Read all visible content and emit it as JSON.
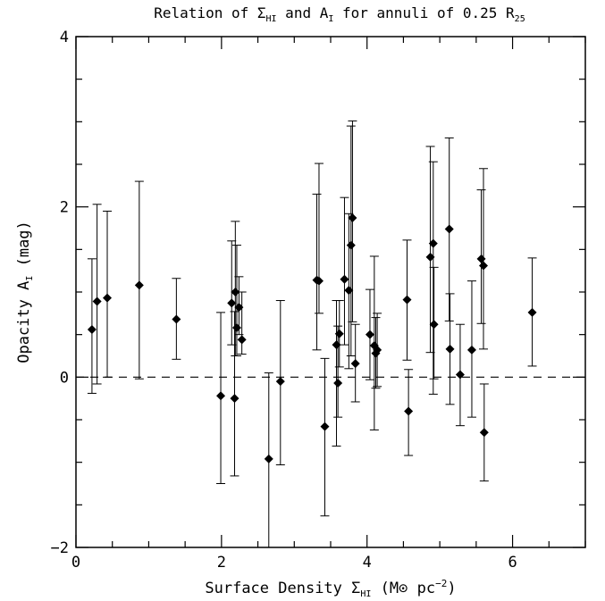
{
  "chart_data": {
    "type": "scatter",
    "title": "Relation of ΣHI and AI for annuli of 0.25 R25",
    "title_parts": {
      "pre": "Relation of Σ",
      "sub1": "HI",
      "mid": " and A",
      "sub2": "I",
      "post": " for annuli of 0.25 R",
      "sub3": "25"
    },
    "xlabel": "Surface Density ΣHI (M⊙ pc⁻²)",
    "xlabel_parts": {
      "pre": "Surface Density Σ",
      "sub": "HI",
      "mid": " (M",
      "sym": "⊙",
      "unit": " pc",
      "sup": "−2",
      "post": ")"
    },
    "ylabel": "Opacity AI (mag)",
    "ylabel_parts": {
      "pre": "Opacity A",
      "sub": "I",
      "post": " (mag)"
    },
    "xlim": [
      0,
      7
    ],
    "ylim": [
      -2,
      4
    ],
    "xticks": [
      0,
      2,
      4,
      6
    ],
    "xtick_labels": [
      "0",
      "2",
      "4",
      "6"
    ],
    "yticks": [
      -2,
      0,
      2,
      4
    ],
    "ytick_labels": [
      "−2",
      "0",
      "2",
      "4"
    ],
    "reference_line": {
      "y": 0,
      "style": "dashed"
    },
    "marker": "diamond",
    "color": "#000000",
    "points": [
      {
        "x": 0.22,
        "y": 0.56,
        "ylo": -0.19,
        "yhi": 1.39
      },
      {
        "x": 0.29,
        "y": 0.89,
        "ylo": -0.08,
        "yhi": 2.03
      },
      {
        "x": 0.43,
        "y": 0.93,
        "ylo": 0.0,
        "yhi": 1.95
      },
      {
        "x": 0.87,
        "y": 1.08,
        "ylo": -0.02,
        "yhi": 2.3
      },
      {
        "x": 1.38,
        "y": 0.68,
        "ylo": 0.21,
        "yhi": 1.16
      },
      {
        "x": 1.99,
        "y": -0.22,
        "ylo": -1.25,
        "yhi": 0.76
      },
      {
        "x": 2.14,
        "y": 0.87,
        "ylo": 0.38,
        "yhi": 1.6
      },
      {
        "x": 2.18,
        "y": -0.25,
        "ylo": -1.16,
        "yhi": 0.77
      },
      {
        "x": 2.19,
        "y": 1.0,
        "ylo": 0.25,
        "yhi": 1.83
      },
      {
        "x": 2.21,
        "y": 0.58,
        "ylo": 0.25,
        "yhi": 1.55
      },
      {
        "x": 2.24,
        "y": 0.82,
        "ylo": 0.5,
        "yhi": 1.18
      },
      {
        "x": 2.28,
        "y": 0.44,
        "ylo": 0.27,
        "yhi": 1.0
      },
      {
        "x": 2.65,
        "y": -0.96,
        "ylo": -2.0,
        "yhi": 0.05
      },
      {
        "x": 2.81,
        "y": -0.05,
        "ylo": -1.03,
        "yhi": 0.9
      },
      {
        "x": 3.31,
        "y": 1.14,
        "ylo": 0.32,
        "yhi": 2.15
      },
      {
        "x": 3.34,
        "y": 1.13,
        "ylo": 0.75,
        "yhi": 2.51
      },
      {
        "x": 3.42,
        "y": -0.58,
        "ylo": -1.63,
        "yhi": 0.22
      },
      {
        "x": 3.58,
        "y": 0.38,
        "ylo": -0.81,
        "yhi": 0.9
      },
      {
        "x": 3.6,
        "y": -0.07,
        "ylo": -0.47,
        "yhi": 0.6
      },
      {
        "x": 3.62,
        "y": 0.51,
        "ylo": 0.12,
        "yhi": 0.9
      },
      {
        "x": 3.69,
        "y": 1.15,
        "ylo": 0.38,
        "yhi": 2.11
      },
      {
        "x": 3.75,
        "y": 1.02,
        "ylo": 0.1,
        "yhi": 1.92
      },
      {
        "x": 3.78,
        "y": 1.55,
        "ylo": 0.25,
        "yhi": 2.95
      },
      {
        "x": 3.8,
        "y": 1.87,
        "ylo": 0.65,
        "yhi": 3.01
      },
      {
        "x": 3.84,
        "y": 0.16,
        "ylo": -0.29,
        "yhi": 0.62
      },
      {
        "x": 4.04,
        "y": 0.5,
        "ylo": -0.03,
        "yhi": 1.03
      },
      {
        "x": 4.1,
        "y": 0.37,
        "ylo": -0.62,
        "yhi": 1.42
      },
      {
        "x": 4.12,
        "y": 0.28,
        "ylo": -0.13,
        "yhi": 0.7
      },
      {
        "x": 4.14,
        "y": 0.32,
        "ylo": -0.11,
        "yhi": 0.75
      },
      {
        "x": 4.55,
        "y": 0.91,
        "ylo": 0.2,
        "yhi": 1.61
      },
      {
        "x": 4.57,
        "y": -0.4,
        "ylo": -0.92,
        "yhi": 0.09
      },
      {
        "x": 4.87,
        "y": 1.41,
        "ylo": 0.29,
        "yhi": 2.71
      },
      {
        "x": 4.91,
        "y": 1.57,
        "ylo": -0.2,
        "yhi": 2.53
      },
      {
        "x": 4.92,
        "y": 0.62,
        "ylo": -0.02,
        "yhi": 1.29
      },
      {
        "x": 5.13,
        "y": 1.74,
        "ylo": 0.66,
        "yhi": 2.81
      },
      {
        "x": 5.14,
        "y": 0.33,
        "ylo": -0.32,
        "yhi": 0.98
      },
      {
        "x": 5.28,
        "y": 0.03,
        "ylo": -0.57,
        "yhi": 0.62
      },
      {
        "x": 5.44,
        "y": 0.32,
        "ylo": -0.47,
        "yhi": 1.13
      },
      {
        "x": 5.57,
        "y": 1.39,
        "ylo": 0.63,
        "yhi": 2.2
      },
      {
        "x": 5.6,
        "y": 1.31,
        "ylo": 0.33,
        "yhi": 2.45
      },
      {
        "x": 5.61,
        "y": -0.65,
        "ylo": -1.22,
        "yhi": -0.08
      },
      {
        "x": 6.27,
        "y": 0.76,
        "ylo": 0.13,
        "yhi": 1.4
      }
    ]
  }
}
